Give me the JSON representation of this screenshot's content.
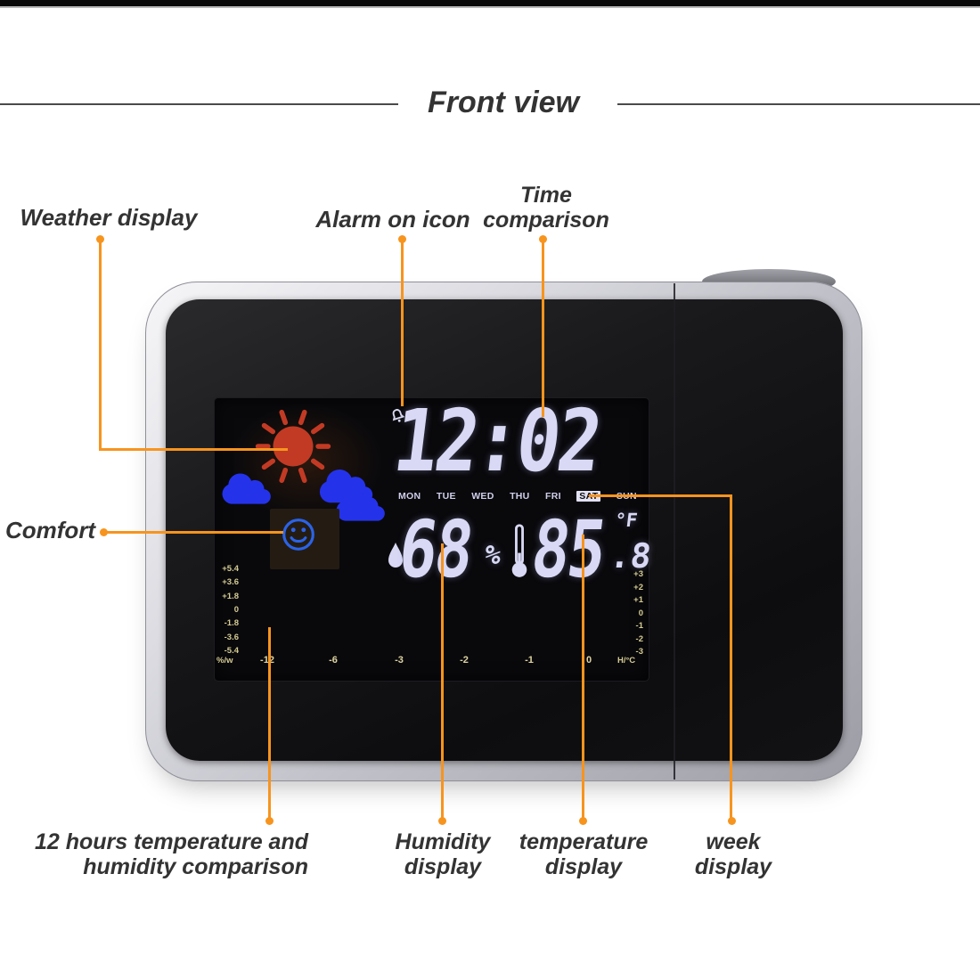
{
  "header": {
    "title": "Front view"
  },
  "annotations": {
    "weather": "Weather display",
    "alarm": "Alarm on icon",
    "time_line1": "Time",
    "time_line2": "comparison",
    "comfort": "Comfort",
    "hours12_line1": "12 hours temperature and",
    "hours12_line2": "humidity comparison",
    "humidity_line1": "Humidity",
    "humidity_line2": "display",
    "temperature_line1": "temperature",
    "temperature_line2": "display",
    "week_line1": "week",
    "week_line2": "display"
  },
  "device": {
    "time": "12:02",
    "days": [
      "MON",
      "TUE",
      "WED",
      "THU",
      "FRI",
      "SAT",
      "SUN"
    ],
    "active_day": "SAT",
    "humidity_value": "68",
    "humidity_unit": "%",
    "temp_value": "85",
    "temp_decimal": ".8",
    "temp_unit": "°F",
    "graph": {
      "left_axis": [
        "+5.4",
        "+3.6",
        "+1.8",
        "0",
        "-1.8",
        "-3.6",
        "-5.4"
      ],
      "left_unit": "%/w",
      "right_axis": [
        "+3",
        "+2",
        "+1",
        "0",
        "-1",
        "-2",
        "-3"
      ],
      "right_unit": "H/°C",
      "x_labels": [
        "-12",
        "-6",
        "-3",
        "-2",
        "-1",
        "0"
      ],
      "bar_rows": 4,
      "columns": [
        {
          "from": "#dce38b",
          "to": "#a9bd2b"
        },
        {
          "from": "#c99d52",
          "to": "#bf3f4b"
        },
        {
          "from": "#b13a56",
          "to": "#c52f44"
        },
        {
          "from": "#c23a60",
          "to": "#c93a52"
        },
        {
          "from": "#a052c8",
          "to": "#5040e0"
        },
        {
          "from": "#2026e8",
          "to": "#2430f2"
        }
      ]
    }
  },
  "icons": {
    "alarm": "bell-icon",
    "humidity": "water-drops-icon",
    "temperature": "thermometer-icon",
    "weather_sun": "sun-icon",
    "weather_cloud": "cloud-icon",
    "comfort": "smiley-icon"
  },
  "colors": {
    "accent": "#F7941E",
    "lcd_text": "#D9D9F5",
    "axis_text": "#D5CB92",
    "sun": "#C23A24",
    "cloud": "#2433EA",
    "smiley": "#2B63E8",
    "active_day_bg": "#E2E2F4"
  }
}
